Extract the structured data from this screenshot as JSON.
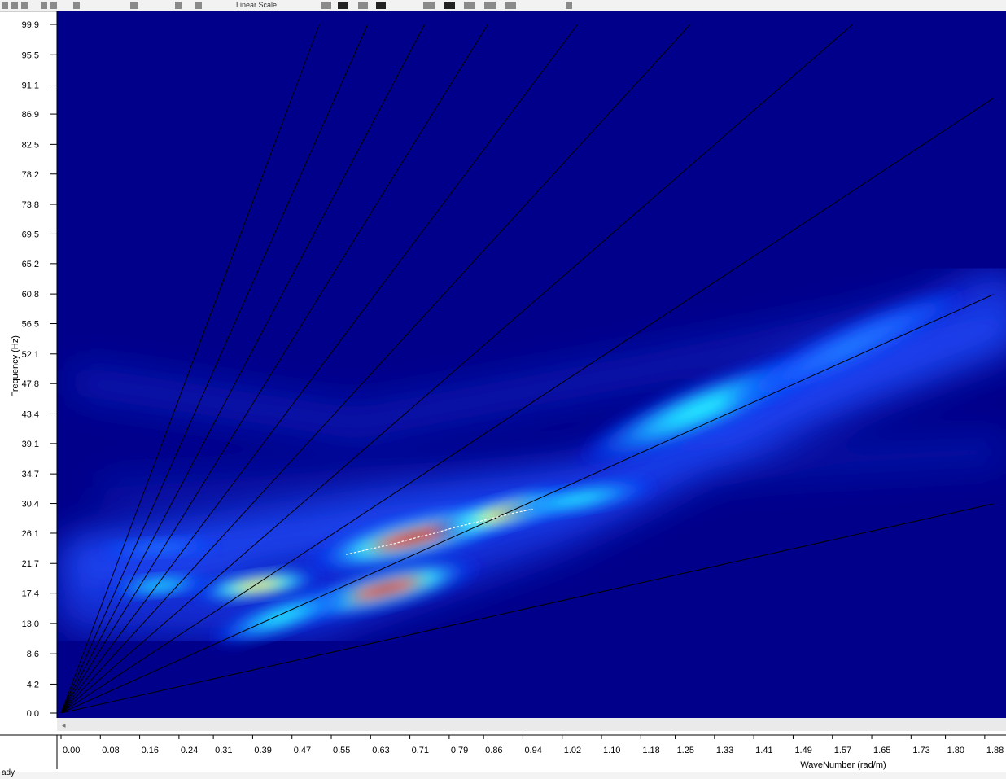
{
  "toolbar": {
    "scale_mode": "Linear Scale"
  },
  "status": {
    "text": "ady"
  },
  "chart_data": {
    "type": "heatmap",
    "title": "",
    "xlabel": "WaveNumber (rad/m)",
    "ylabel": "Frequency (Hz)",
    "xlim": [
      0,
      1.9
    ],
    "ylim": [
      0,
      100
    ],
    "x_ticks": [
      "0.00",
      "0.08",
      "0.16",
      "0.24",
      "0.31",
      "0.39",
      "0.47",
      "0.55",
      "0.63",
      "0.71",
      "0.79",
      "0.86",
      "0.94",
      "1.02",
      "1.10",
      "1.18",
      "1.25",
      "1.33",
      "1.41",
      "1.49",
      "1.57",
      "1.65",
      "1.73",
      "1.80",
      "1.88"
    ],
    "y_ticks": [
      "0.0",
      "4.2",
      "8.6",
      "13.0",
      "17.4",
      "21.7",
      "26.1",
      "30.4",
      "34.7",
      "39.1",
      "43.4",
      "47.8",
      "52.1",
      "56.5",
      "60.8",
      "65.2",
      "69.5",
      "73.8",
      "78.2",
      "82.5",
      "86.9",
      "91.1",
      "95.5",
      "99.9"
    ],
    "colormap": [
      "#000080",
      "#0000ff",
      "#00ffff",
      "#ffff00",
      "#ff0000",
      "#800000"
    ],
    "background_color": "#00008b",
    "velocity_lines_slope_hz_per_rad_m": [
      16,
      32,
      47,
      62,
      78,
      95,
      115,
      135,
      160,
      190
    ],
    "picked_curve": {
      "x": [
        0.58,
        0.63,
        0.68,
        0.72,
        0.76,
        0.8,
        0.84,
        0.88,
        0.92,
        0.96
      ],
      "y": [
        23.0,
        23.8,
        24.6,
        25.4,
        26.1,
        26.9,
        27.6,
        28.3,
        29.0,
        29.6
      ]
    },
    "energy_blobs": [
      {
        "x": 0.72,
        "y": 25.5,
        "level": 1.0
      },
      {
        "x": 0.66,
        "y": 18.0,
        "level": 0.9
      },
      {
        "x": 0.4,
        "y": 18.5,
        "level": 0.55
      },
      {
        "x": 0.2,
        "y": 18.5,
        "level": 0.35
      },
      {
        "x": 0.2,
        "y": 24.0,
        "level": 0.3
      },
      {
        "x": 0.9,
        "y": 29.0,
        "level": 0.6
      },
      {
        "x": 1.3,
        "y": 44.0,
        "level": 0.45
      },
      {
        "x": 1.6,
        "y": 53.0,
        "level": 0.25
      },
      {
        "x": 0.45,
        "y": 14.0,
        "level": 0.4
      },
      {
        "x": 1.05,
        "y": 31.0,
        "level": 0.35
      }
    ]
  }
}
